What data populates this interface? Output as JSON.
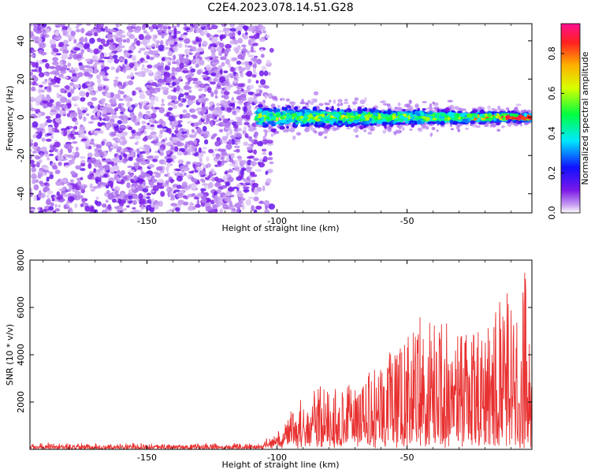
{
  "figure": {
    "title": "C2E4.2023.078.14.51.G28"
  },
  "chart_data": [
    {
      "type": "heatmap",
      "xlabel": "Height of straight line (km)",
      "ylabel": "Frequency (Hz)",
      "xlim": [
        -195,
        -2
      ],
      "ylim": [
        -50,
        49
      ],
      "x_ticks": [
        -150,
        -100,
        -50
      ],
      "y_ticks": [
        -40,
        -20,
        0,
        20,
        40
      ],
      "grid": false,
      "colormap": "rainbow (white at 0, purple at low values, red/magenta at 1.0)",
      "colorbar": {
        "label": "Normalized spectral amplitude",
        "range": [
          0.0,
          0.95
        ],
        "ticks": [
          0.0,
          0.2,
          0.4,
          0.6,
          0.8
        ]
      },
      "description_of_data": {
        "noise_region_km": [
          -195,
          -108
        ],
        "noise_frequency_range_hz": [
          -50,
          49
        ],
        "noise_amplitude_range": [
          0.05,
          0.15
        ],
        "signal_region_km": [
          -108,
          -2
        ],
        "signal_center_frequency_hz": 0,
        "signal_band_halfwidth_hz_start": 7,
        "signal_band_halfwidth_hz_end": 3,
        "signal_peak_amplitude_near_km": -5,
        "signal_peak_amplitude": 0.9
      }
    },
    {
      "type": "line",
      "xlabel": "Height of straight line (km)",
      "ylabel": "SNR (10 * v/v)",
      "xlim": [
        -195,
        -2
      ],
      "ylim": [
        0,
        8000
      ],
      "x_ticks": [
        -150,
        -100,
        -50
      ],
      "y_ticks": [
        2000,
        4000,
        6000,
        8000
      ],
      "grid": false,
      "series": [
        {
          "color": "#e83030",
          "envelope": {
            "km": [
              -195,
              -120,
              -108,
              -100,
              -95,
              -90,
              -85,
              -80,
              -70,
              -60,
              -50,
              -40,
              -30,
              -20,
              -15,
              -10,
              -5,
              -3,
              -2
            ],
            "snr_max": [
              200,
              200,
              250,
              700,
              1600,
              2600,
              3200,
              2800,
              3000,
              3600,
              5500,
              5800,
              5200,
              5500,
              6400,
              7300,
              8000,
              7500,
              3500
            ]
          },
          "noise_floor_snr": [
            0,
            300
          ]
        }
      ]
    }
  ]
}
